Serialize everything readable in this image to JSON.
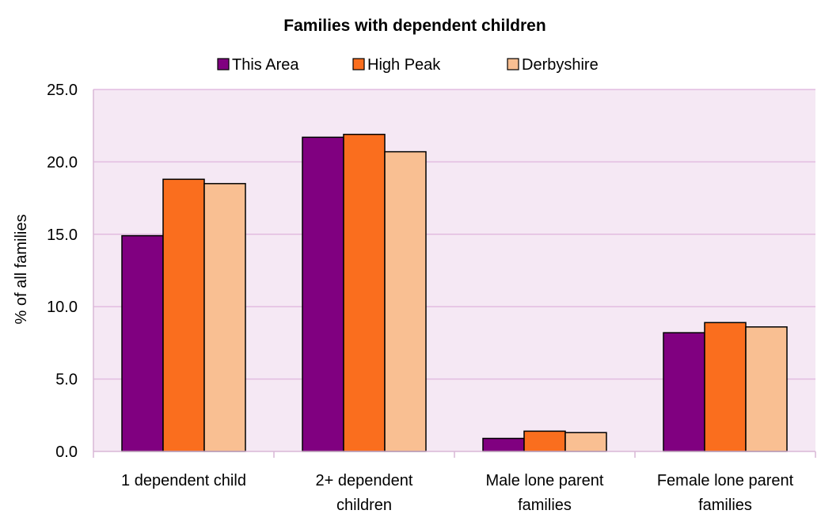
{
  "chart_data": {
    "type": "bar",
    "title": "Families with dependent children",
    "xlabel": "",
    "ylabel": "% of all families",
    "ylim": [
      0,
      25
    ],
    "yticks": [
      "0.0",
      "5.0",
      "10.0",
      "15.0",
      "20.0",
      "25.0"
    ],
    "grid": true,
    "legend_position": "top",
    "categories": [
      [
        "1 dependent child"
      ],
      [
        "2+ dependent",
        "children"
      ],
      [
        "Male lone parent",
        "families"
      ],
      [
        "Female lone parent",
        "families"
      ]
    ],
    "series": [
      {
        "name": "This Area",
        "color": "#800080",
        "values": [
          14.9,
          21.7,
          0.9,
          8.2
        ]
      },
      {
        "name": "High Peak",
        "color": "#FA6E1E",
        "values": [
          18.8,
          21.9,
          1.4,
          8.9
        ]
      },
      {
        "name": "Derbyshire",
        "color": "#F9BF92",
        "values": [
          18.5,
          20.7,
          1.3,
          8.6
        ]
      }
    ],
    "plot_background": "#F5E8F4",
    "gridline_color": "#E2BCE0"
  }
}
